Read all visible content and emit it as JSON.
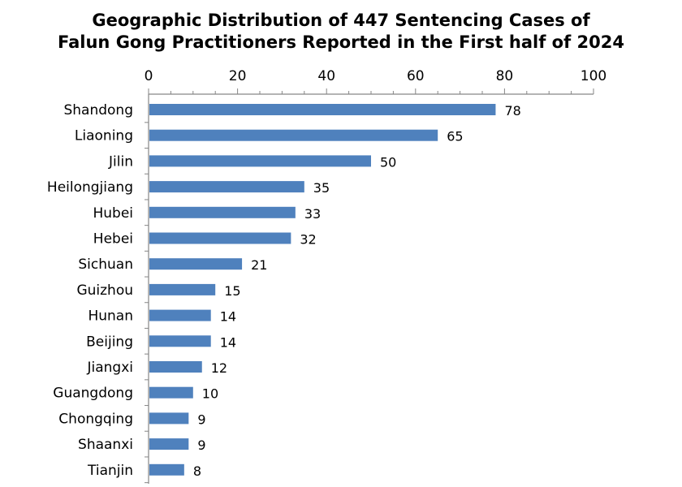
{
  "chart_data": {
    "type": "bar",
    "orientation": "horizontal",
    "title": "Geographic Distribution of 447 Sentencing Cases of Falun Gong Practitioners Reported in the First half of 2024",
    "title_line1": "Geographic Distribution of 447 Sentencing Cases of",
    "title_line2": "Falun Gong Practitioners Reported in the First half of 2024",
    "categories": [
      "Shandong",
      "Liaoning",
      "Jilin",
      "Heilongjiang",
      "Hubei",
      "Hebei",
      "Sichuan",
      "Guizhou",
      "Hunan",
      "Beijing",
      "Jiangxi",
      "Guangdong",
      "Chongqing",
      "Shaanxi",
      "Tianjin"
    ],
    "values": [
      78,
      65,
      50,
      35,
      33,
      32,
      21,
      15,
      14,
      14,
      12,
      10,
      9,
      9,
      8
    ],
    "xlim": [
      0,
      100
    ],
    "xticks": [
      0,
      20,
      40,
      60,
      80,
      100
    ],
    "x_axis_position": "top",
    "grid": false,
    "bar_color": "#4f81bd",
    "data_labels": true
  }
}
